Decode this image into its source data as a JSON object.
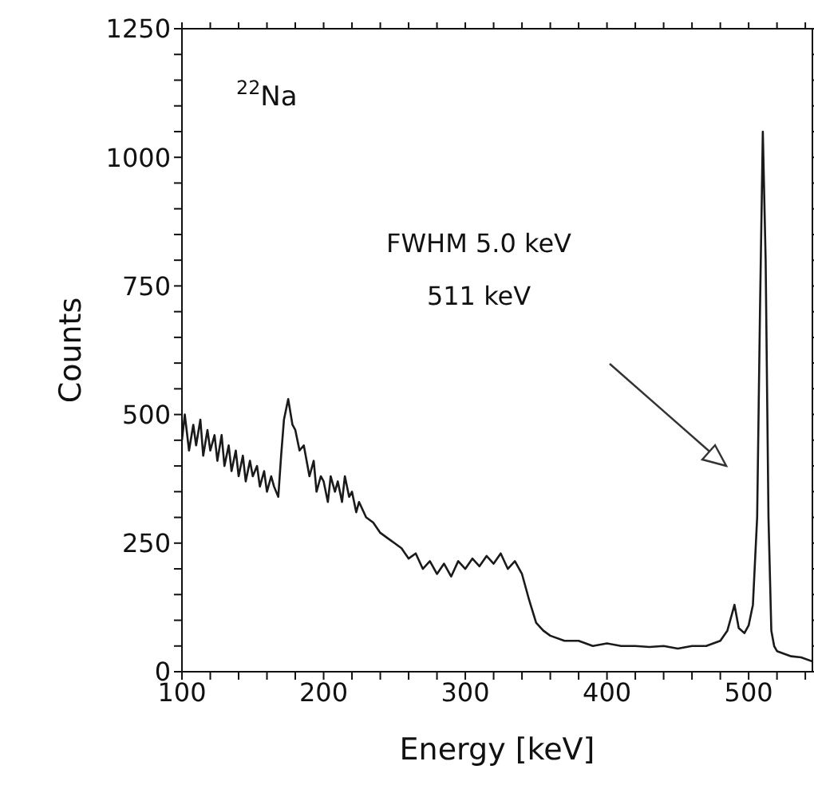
{
  "chart_data": {
    "type": "line",
    "xlabel": "Energy [keV]",
    "ylabel": "Counts",
    "annotations": [
      "$^{22}$Na",
      "FWHM 5.0 keV",
      "511 keV"
    ],
    "xlim": [
      100,
      545
    ],
    "ylim": [
      0,
      1250
    ],
    "xticks": [
      100,
      {
        "value": 120,
        "label": null
      },
      {
        "value": 140,
        "label": null
      },
      {
        "value": 160,
        "label": null
      },
      {
        "value": 180,
        "label": null
      },
      200,
      {
        "value": 220,
        "label": null
      },
      {
        "value": 240,
        "label": null
      },
      {
        "value": 260,
        "label": null
      },
      {
        "value": 280,
        "label": null
      },
      300,
      {
        "value": 320,
        "label": null
      },
      {
        "value": 340,
        "label": null
      },
      {
        "value": 360,
        "label": null
      },
      {
        "value": 380,
        "label": null
      },
      400,
      {
        "value": 420,
        "label": null
      },
      {
        "value": 440,
        "label": null
      },
      {
        "value": 460,
        "label": null
      },
      {
        "value": 480,
        "label": null
      },
      500,
      {
        "value": 520,
        "label": null
      },
      {
        "value": 540,
        "label": null
      }
    ],
    "yticks": [
      0,
      {
        "value": 50,
        "label": null
      },
      {
        "value": 100,
        "label": null
      },
      {
        "value": 150,
        "label": null
      },
      {
        "value": 200,
        "label": null
      },
      250,
      {
        "value": 300,
        "label": null
      },
      {
        "value": 350,
        "label": null
      },
      {
        "value": 400,
        "label": null
      },
      {
        "value": 450,
        "label": null
      },
      500,
      {
        "value": 550,
        "label": null
      },
      {
        "value": 600,
        "label": null
      },
      {
        "value": 650,
        "label": null
      },
      {
        "value": 700,
        "label": null
      },
      750,
      {
        "value": 800,
        "label": null
      },
      {
        "value": 850,
        "label": null
      },
      {
        "value": 900,
        "label": null
      },
      {
        "value": 950,
        "label": null
      },
      1000,
      {
        "value": 1050,
        "label": null
      },
      {
        "value": 1100,
        "label": null
      },
      {
        "value": 1150,
        "label": null
      },
      {
        "value": 1200,
        "label": null
      },
      1250
    ],
    "x": [
      100,
      102,
      105,
      108,
      110,
      113,
      115,
      118,
      120,
      123,
      125,
      128,
      130,
      133,
      135,
      138,
      140,
      143,
      145,
      148,
      150,
      153,
      155,
      158,
      160,
      163,
      165,
      168,
      170,
      172,
      175,
      178,
      180,
      183,
      186,
      190,
      193,
      195,
      198,
      200,
      203,
      205,
      208,
      210,
      213,
      215,
      218,
      220,
      223,
      225,
      230,
      235,
      240,
      245,
      250,
      255,
      260,
      265,
      270,
      275,
      280,
      285,
      290,
      295,
      300,
      305,
      310,
      315,
      320,
      325,
      330,
      335,
      340,
      345,
      350,
      355,
      360,
      370,
      380,
      390,
      400,
      410,
      420,
      430,
      440,
      450,
      460,
      470,
      475,
      480,
      485,
      488,
      490,
      493,
      497,
      500,
      503,
      506,
      508,
      510,
      512,
      514,
      516,
      518,
      520,
      525,
      530,
      537,
      545
    ],
    "series": [
      {
        "color": "#1a1a1a",
        "values": [
          450,
          500,
          430,
          480,
          440,
          490,
          420,
          470,
          430,
          460,
          410,
          460,
          400,
          440,
          390,
          430,
          380,
          420,
          370,
          410,
          380,
          400,
          360,
          390,
          350,
          380,
          360,
          340,
          420,
          490,
          530,
          480,
          470,
          430,
          440,
          380,
          410,
          350,
          380,
          370,
          330,
          380,
          350,
          370,
          330,
          380,
          340,
          350,
          310,
          330,
          300,
          290,
          270,
          260,
          250,
          240,
          220,
          230,
          200,
          215,
          190,
          210,
          185,
          215,
          200,
          220,
          205,
          225,
          210,
          230,
          200,
          215,
          190,
          140,
          95,
          80,
          70,
          60,
          60,
          50,
          55,
          50,
          50,
          48,
          50,
          45,
          50,
          50,
          55,
          60,
          80,
          110,
          130,
          85,
          75,
          90,
          130,
          300,
          700,
          1050,
          800,
          300,
          80,
          50,
          40,
          35,
          30,
          28,
          20
        ]
      }
    ]
  }
}
